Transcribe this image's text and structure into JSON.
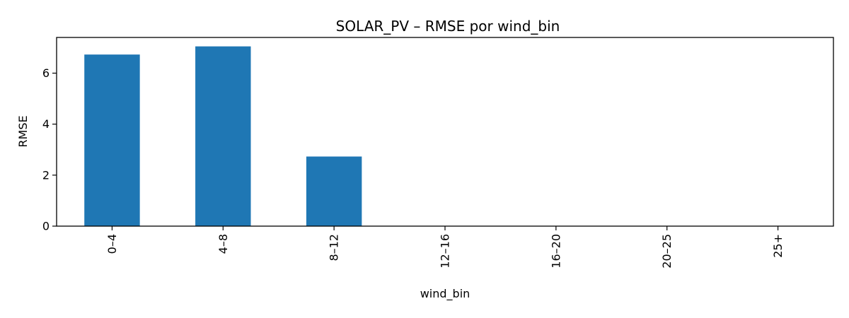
{
  "chart_data": {
    "type": "bar",
    "title": "SOLAR_PV – RMSE por wind_bin",
    "xlabel": "wind_bin",
    "ylabel": "RMSE",
    "categories": [
      "0–4",
      "4–8",
      "8–12",
      "12–16",
      "16–20",
      "20–25",
      "25+"
    ],
    "values": [
      6.73,
      7.05,
      2.73,
      0,
      0,
      0,
      0
    ],
    "ylim": [
      0,
      7.4
    ],
    "yticks": [
      0,
      2,
      4,
      6
    ],
    "grid": false,
    "legend": "none",
    "bar_color": "#1f77b4",
    "x_tick_rotation": 90
  }
}
